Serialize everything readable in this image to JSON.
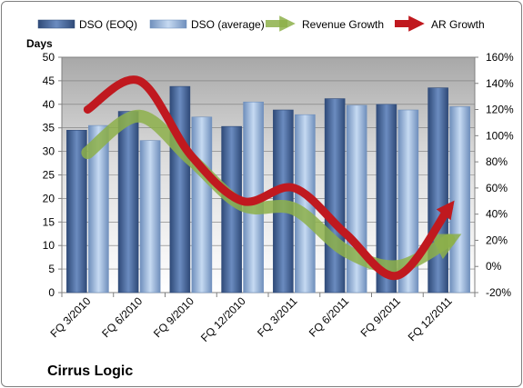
{
  "company": "Cirrus Logic",
  "chart_data": {
    "type": "bar",
    "categories": [
      "FQ 3/2010",
      "FQ 6/2010",
      "FQ 9/2010",
      "FQ 12/2010",
      "FQ 3/2011",
      "FQ 6/2011",
      "FQ 9/2011",
      "FQ 12/2011"
    ],
    "ylabel": "Days",
    "ylim": [
      0,
      50
    ],
    "y_ticks": [
      0,
      5,
      10,
      15,
      20,
      25,
      30,
      35,
      40,
      45,
      50
    ],
    "y2lim": [
      -0.2,
      1.6
    ],
    "y2_ticks": [
      "-20%",
      "0%",
      "20%",
      "40%",
      "60%",
      "80%",
      "100%",
      "120%",
      "140%",
      "160%"
    ],
    "series": [
      {
        "name": "DSO (EOQ)",
        "kind": "bar",
        "axis": "left",
        "color": "#4f6fa0",
        "values": [
          34.5,
          38.5,
          43.8,
          35.3,
          38.8,
          41.2,
          40.0,
          43.5
        ]
      },
      {
        "name": "DSO (average)",
        "kind": "bar",
        "axis": "left",
        "color": "#a9c4e8",
        "values": [
          35.5,
          32.3,
          37.3,
          40.5,
          37.8,
          39.8,
          38.8,
          39.5
        ]
      },
      {
        "name": "Revenue Growth",
        "kind": "line",
        "axis": "right",
        "color": "#8db04a",
        "values": [
          0.87,
          1.15,
          0.82,
          0.47,
          0.44,
          0.12,
          0.0,
          0.2
        ]
      },
      {
        "name": "AR Growth",
        "kind": "line",
        "axis": "right",
        "color": "#c0191f",
        "values": [
          1.2,
          1.42,
          0.85,
          0.5,
          0.6,
          0.25,
          -0.07,
          0.45
        ]
      }
    ],
    "legend_position": "top",
    "grid": true
  }
}
